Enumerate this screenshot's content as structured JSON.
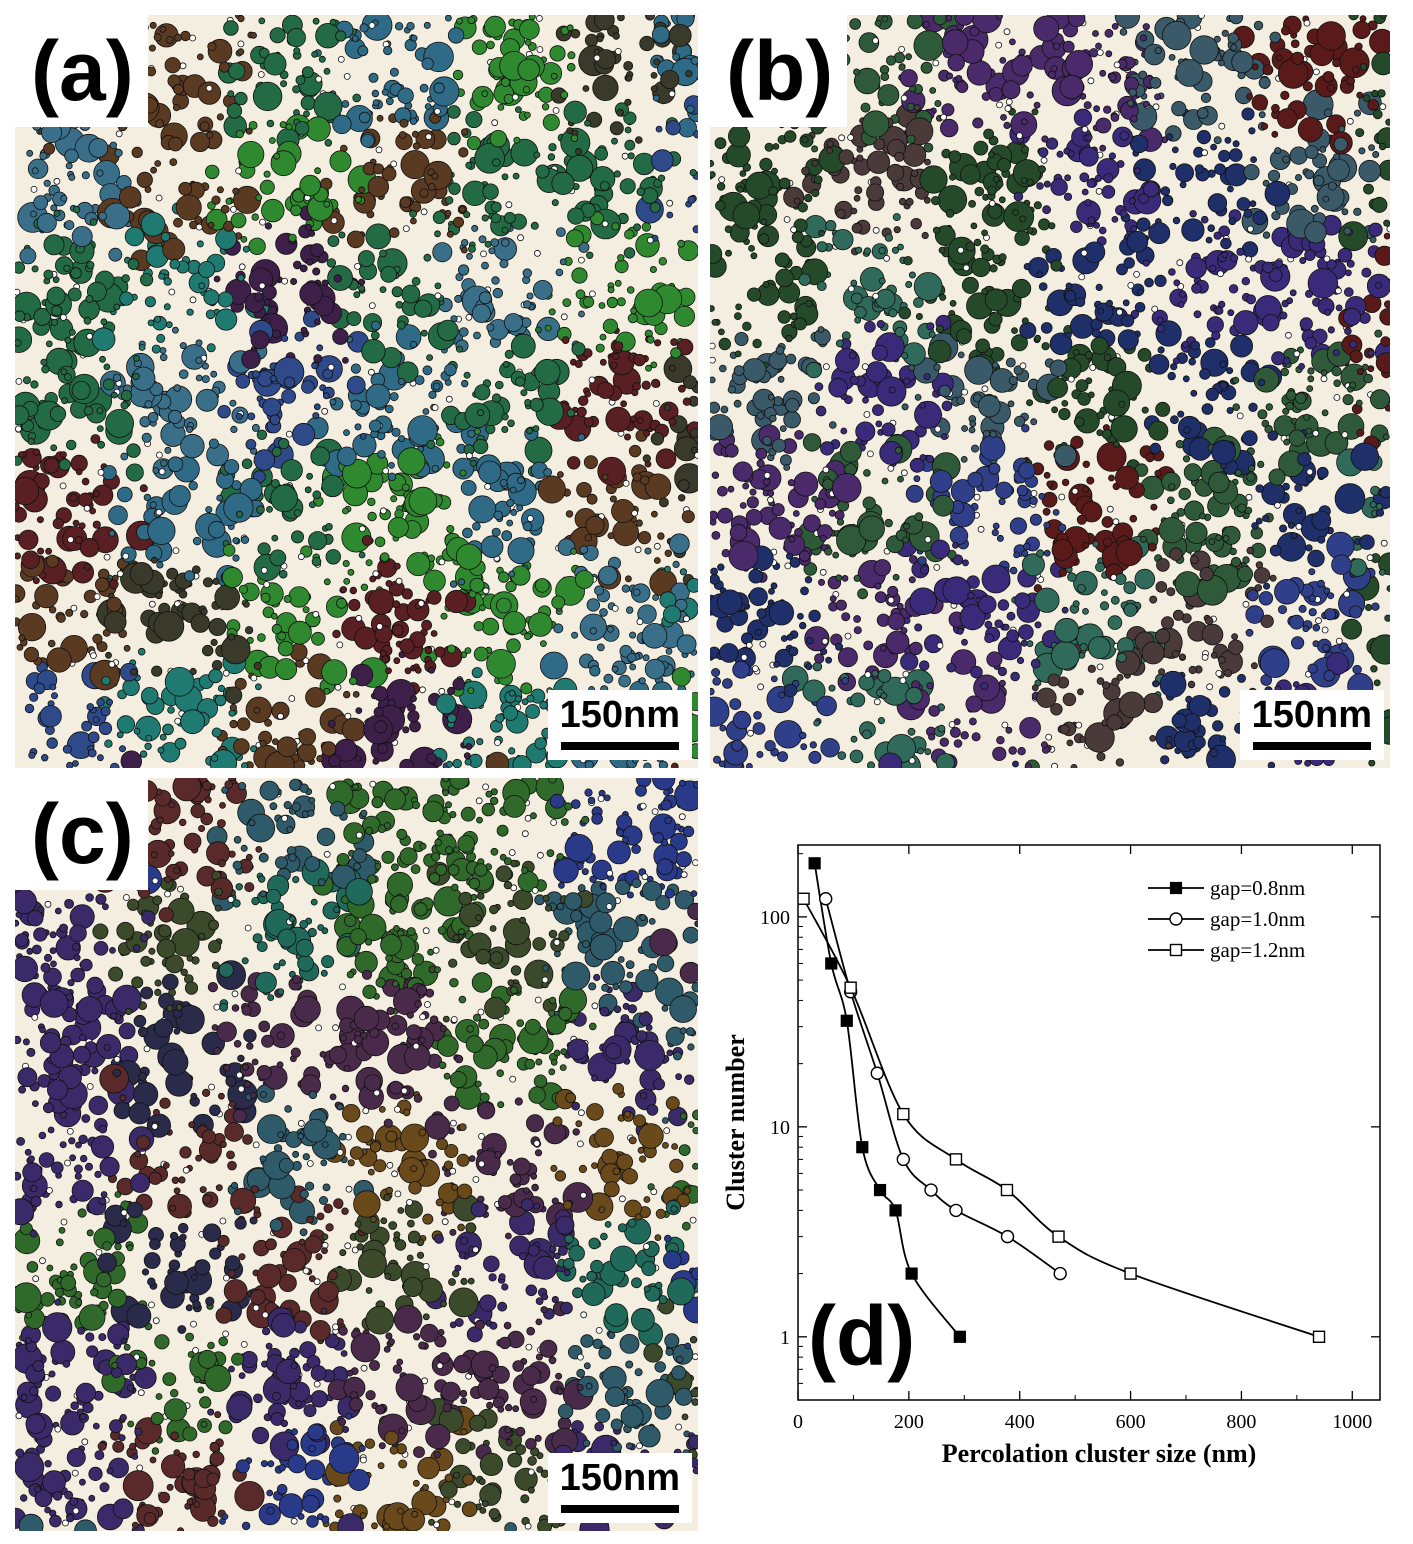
{
  "panels": [
    {
      "label": "(a)",
      "scale": "150nm"
    },
    {
      "label": "(b)",
      "scale": "150nm"
    },
    {
      "label": "(c)",
      "scale": "150nm"
    }
  ],
  "colors": {
    "background": "#f3eedf",
    "panel_a": [
      "#2f6b86",
      "#3a6f8a",
      "#5b3a22",
      "#226b45",
      "#1f7a72",
      "#2f4a8a",
      "#3d1f4a",
      "#2f8a2f",
      "#3a3a2a",
      "#5a1f22"
    ],
    "panel_b": [
      "#1f2f6a",
      "#2f3f8a",
      "#244a2a",
      "#2f5a3a",
      "#3a2a7a",
      "#4a2a6a",
      "#2f6a5a",
      "#3a5a6a",
      "#5a1a1a",
      "#4a3a3a"
    ],
    "panel_c": [
      "#2f6a2a",
      "#2f5a6a",
      "#2a3a8a",
      "#3a2a6a",
      "#4a2a4a",
      "#1f6a5a",
      "#5a2a2a",
      "#3a4a2a",
      "#2a2a4a",
      "#6a4a1a"
    ]
  },
  "chart_data": {
    "type": "line",
    "panel_label": "(d)",
    "xlabel": "Percolation cluster size  (nm)",
    "ylabel": "Cluster number",
    "xlim": [
      0,
      1050
    ],
    "ylim": [
      0.5,
      220
    ],
    "yscale": "log",
    "x_ticks": [
      "0",
      "200",
      "400",
      "600",
      "800",
      "1000"
    ],
    "y_ticks": [
      "1",
      "10",
      "100"
    ],
    "legend_position": "top-right",
    "series": [
      {
        "name": "gap=0.8nm",
        "marker": "filled-square",
        "x": [
          30,
          60,
          88,
          116,
          148,
          176,
          205,
          292
        ],
        "y": [
          180,
          60,
          32,
          8,
          5,
          4,
          2,
          1
        ]
      },
      {
        "name": "gap=1.0nm",
        "marker": "open-circle",
        "x": [
          50,
          95,
          143,
          190,
          240,
          285,
          378,
          473
        ],
        "y": [
          122,
          44,
          18,
          7,
          5,
          4,
          3,
          2
        ]
      },
      {
        "name": "gap=1.2nm",
        "marker": "open-square",
        "x": [
          10,
          95,
          190,
          285,
          377,
          470,
          600,
          940
        ],
        "y": [
          122,
          46,
          11.5,
          7,
          5,
          3,
          2,
          1
        ]
      }
    ]
  }
}
